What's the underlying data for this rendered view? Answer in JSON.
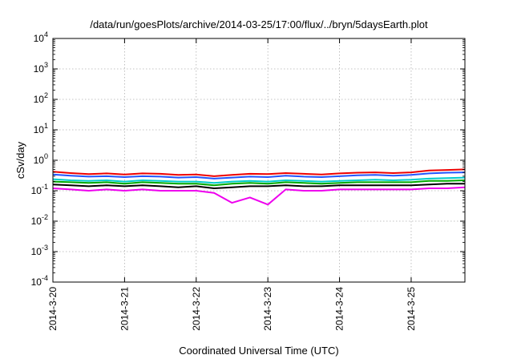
{
  "chart_data": {
    "type": "line",
    "title": "/data/run/goesPlots/archive/2014-03-25/17:00/flux/../bryn/5daysEarth.plot",
    "xlabel": "Coordinated Universal Time (UTC)",
    "ylabel": "cSv/day",
    "yscale": "log",
    "ylim": [
      0.0001,
      10000
    ],
    "xlim": [
      "2014-03-20 00:00",
      "2014-03-25 18:00"
    ],
    "grid": true,
    "x_ticks": [
      "2014-3-20",
      "2014-3-21",
      "2014-3-22",
      "2014-3-23",
      "2014-3-24",
      "2014-3-25"
    ],
    "y_ticks": [
      {
        "base": "10",
        "exp": "-4"
      },
      {
        "base": "10",
        "exp": "-3"
      },
      {
        "base": "10",
        "exp": "-2"
      },
      {
        "base": "10",
        "exp": "-1"
      },
      {
        "base": "10",
        "exp": "0"
      },
      {
        "base": "10",
        "exp": "1"
      },
      {
        "base": "10",
        "exp": "2"
      },
      {
        "base": "10",
        "exp": "3"
      },
      {
        "base": "10",
        "exp": "4"
      }
    ],
    "series": [
      {
        "color": "#ee0000",
        "values": [
          {
            "x": "2014-03-20 00:00",
            "y": 0.42
          },
          {
            "x": "2014-03-20 06:00",
            "y": 0.38
          },
          {
            "x": "2014-03-20 12:00",
            "y": 0.35
          },
          {
            "x": "2014-03-20 18:00",
            "y": 0.37
          },
          {
            "x": "2014-03-21 00:00",
            "y": 0.34
          },
          {
            "x": "2014-03-21 06:00",
            "y": 0.37
          },
          {
            "x": "2014-03-21 12:00",
            "y": 0.36
          },
          {
            "x": "2014-03-21 18:00",
            "y": 0.33
          },
          {
            "x": "2014-03-22 00:00",
            "y": 0.34
          },
          {
            "x": "2014-03-22 06:00",
            "y": 0.3
          },
          {
            "x": "2014-03-22 12:00",
            "y": 0.33
          },
          {
            "x": "2014-03-22 18:00",
            "y": 0.36
          },
          {
            "x": "2014-03-23 00:00",
            "y": 0.35
          },
          {
            "x": "2014-03-23 06:00",
            "y": 0.38
          },
          {
            "x": "2014-03-23 12:00",
            "y": 0.36
          },
          {
            "x": "2014-03-23 18:00",
            "y": 0.34
          },
          {
            "x": "2014-03-24 00:00",
            "y": 0.37
          },
          {
            "x": "2014-03-24 06:00",
            "y": 0.39
          },
          {
            "x": "2014-03-24 12:00",
            "y": 0.4
          },
          {
            "x": "2014-03-24 18:00",
            "y": 0.38
          },
          {
            "x": "2014-03-25 00:00",
            "y": 0.4
          },
          {
            "x": "2014-03-25 06:00",
            "y": 0.46
          },
          {
            "x": "2014-03-25 12:00",
            "y": 0.48
          },
          {
            "x": "2014-03-25 18:00",
            "y": 0.5
          }
        ]
      },
      {
        "color": "#2255ff",
        "values": [
          {
            "x": "2014-03-20 00:00",
            "y": 0.34
          },
          {
            "x": "2014-03-20 06:00",
            "y": 0.31
          },
          {
            "x": "2014-03-20 12:00",
            "y": 0.29
          },
          {
            "x": "2014-03-20 18:00",
            "y": 0.3
          },
          {
            "x": "2014-03-21 00:00",
            "y": 0.28
          },
          {
            "x": "2014-03-21 06:00",
            "y": 0.3
          },
          {
            "x": "2014-03-21 12:00",
            "y": 0.29
          },
          {
            "x": "2014-03-21 18:00",
            "y": 0.27
          },
          {
            "x": "2014-03-22 00:00",
            "y": 0.28
          },
          {
            "x": "2014-03-22 06:00",
            "y": 0.25
          },
          {
            "x": "2014-03-22 12:00",
            "y": 0.27
          },
          {
            "x": "2014-03-22 18:00",
            "y": 0.29
          },
          {
            "x": "2014-03-23 00:00",
            "y": 0.28
          },
          {
            "x": "2014-03-23 06:00",
            "y": 0.31
          },
          {
            "x": "2014-03-23 12:00",
            "y": 0.29
          },
          {
            "x": "2014-03-23 18:00",
            "y": 0.28
          },
          {
            "x": "2014-03-24 00:00",
            "y": 0.3
          },
          {
            "x": "2014-03-24 06:00",
            "y": 0.32
          },
          {
            "x": "2014-03-24 12:00",
            "y": 0.33
          },
          {
            "x": "2014-03-24 18:00",
            "y": 0.31
          },
          {
            "x": "2014-03-25 00:00",
            "y": 0.33
          },
          {
            "x": "2014-03-25 06:00",
            "y": 0.37
          },
          {
            "x": "2014-03-25 12:00",
            "y": 0.39
          },
          {
            "x": "2014-03-25 18:00",
            "y": 0.4
          }
        ]
      },
      {
        "color": "#00cccc",
        "values": [
          {
            "x": "2014-03-20 00:00",
            "y": 0.24
          },
          {
            "x": "2014-03-20 06:00",
            "y": 0.22
          },
          {
            "x": "2014-03-20 12:00",
            "y": 0.21
          },
          {
            "x": "2014-03-20 18:00",
            "y": 0.22
          },
          {
            "x": "2014-03-21 00:00",
            "y": 0.2
          },
          {
            "x": "2014-03-21 06:00",
            "y": 0.22
          },
          {
            "x": "2014-03-21 12:00",
            "y": 0.21
          },
          {
            "x": "2014-03-21 18:00",
            "y": 0.2
          },
          {
            "x": "2014-03-22 00:00",
            "y": 0.2
          },
          {
            "x": "2014-03-22 06:00",
            "y": 0.18
          },
          {
            "x": "2014-03-22 12:00",
            "y": 0.2
          },
          {
            "x": "2014-03-22 18:00",
            "y": 0.21
          },
          {
            "x": "2014-03-23 00:00",
            "y": 0.2
          },
          {
            "x": "2014-03-23 06:00",
            "y": 0.22
          },
          {
            "x": "2014-03-23 12:00",
            "y": 0.21
          },
          {
            "x": "2014-03-23 18:00",
            "y": 0.2
          },
          {
            "x": "2014-03-24 00:00",
            "y": 0.21
          },
          {
            "x": "2014-03-24 06:00",
            "y": 0.22
          },
          {
            "x": "2014-03-24 12:00",
            "y": 0.23
          },
          {
            "x": "2014-03-24 18:00",
            "y": 0.22
          },
          {
            "x": "2014-03-25 00:00",
            "y": 0.23
          },
          {
            "x": "2014-03-25 06:00",
            "y": 0.25
          },
          {
            "x": "2014-03-25 12:00",
            "y": 0.26
          },
          {
            "x": "2014-03-25 18:00",
            "y": 0.27
          }
        ]
      },
      {
        "color": "#00aa00",
        "values": [
          {
            "x": "2014-03-20 00:00",
            "y": 0.2
          },
          {
            "x": "2014-03-20 06:00",
            "y": 0.19
          },
          {
            "x": "2014-03-20 12:00",
            "y": 0.18
          },
          {
            "x": "2014-03-20 18:00",
            "y": 0.19
          },
          {
            "x": "2014-03-21 00:00",
            "y": 0.17
          },
          {
            "x": "2014-03-21 06:00",
            "y": 0.19
          },
          {
            "x": "2014-03-21 12:00",
            "y": 0.18
          },
          {
            "x": "2014-03-21 18:00",
            "y": 0.17
          },
          {
            "x": "2014-03-22 00:00",
            "y": 0.17
          },
          {
            "x": "2014-03-22 06:00",
            "y": 0.15
          },
          {
            "x": "2014-03-22 12:00",
            "y": 0.17
          },
          {
            "x": "2014-03-22 18:00",
            "y": 0.18
          },
          {
            "x": "2014-03-23 00:00",
            "y": 0.17
          },
          {
            "x": "2014-03-23 06:00",
            "y": 0.19
          },
          {
            "x": "2014-03-23 12:00",
            "y": 0.18
          },
          {
            "x": "2014-03-23 18:00",
            "y": 0.17
          },
          {
            "x": "2014-03-24 00:00",
            "y": 0.18
          },
          {
            "x": "2014-03-24 06:00",
            "y": 0.19
          },
          {
            "x": "2014-03-24 12:00",
            "y": 0.19
          },
          {
            "x": "2014-03-24 18:00",
            "y": 0.19
          },
          {
            "x": "2014-03-25 00:00",
            "y": 0.19
          },
          {
            "x": "2014-03-25 06:00",
            "y": 0.21
          },
          {
            "x": "2014-03-25 12:00",
            "y": 0.21
          },
          {
            "x": "2014-03-25 18:00",
            "y": 0.22
          }
        ]
      },
      {
        "color": "#000000",
        "values": [
          {
            "x": "2014-03-20 00:00",
            "y": 0.16
          },
          {
            "x": "2014-03-20 06:00",
            "y": 0.15
          },
          {
            "x": "2014-03-20 12:00",
            "y": 0.14
          },
          {
            "x": "2014-03-20 18:00",
            "y": 0.15
          },
          {
            "x": "2014-03-21 00:00",
            "y": 0.14
          },
          {
            "x": "2014-03-21 06:00",
            "y": 0.15
          },
          {
            "x": "2014-03-21 12:00",
            "y": 0.14
          },
          {
            "x": "2014-03-21 18:00",
            "y": 0.13
          },
          {
            "x": "2014-03-22 00:00",
            "y": 0.14
          },
          {
            "x": "2014-03-22 06:00",
            "y": 0.12
          },
          {
            "x": "2014-03-22 12:00",
            "y": 0.13
          },
          {
            "x": "2014-03-22 18:00",
            "y": 0.14
          },
          {
            "x": "2014-03-23 00:00",
            "y": 0.14
          },
          {
            "x": "2014-03-23 06:00",
            "y": 0.15
          },
          {
            "x": "2014-03-23 12:00",
            "y": 0.14
          },
          {
            "x": "2014-03-23 18:00",
            "y": 0.14
          },
          {
            "x": "2014-03-24 00:00",
            "y": 0.15
          },
          {
            "x": "2014-03-24 06:00",
            "y": 0.15
          },
          {
            "x": "2014-03-24 12:00",
            "y": 0.15
          },
          {
            "x": "2014-03-24 18:00",
            "y": 0.15
          },
          {
            "x": "2014-03-25 00:00",
            "y": 0.15
          },
          {
            "x": "2014-03-25 06:00",
            "y": 0.16
          },
          {
            "x": "2014-03-25 12:00",
            "y": 0.17
          },
          {
            "x": "2014-03-25 18:00",
            "y": 0.17
          }
        ]
      },
      {
        "color": "#ee00ee",
        "values": [
          {
            "x": "2014-03-20 00:00",
            "y": 0.12
          },
          {
            "x": "2014-03-20 06:00",
            "y": 0.11
          },
          {
            "x": "2014-03-20 12:00",
            "y": 0.1
          },
          {
            "x": "2014-03-20 18:00",
            "y": 0.11
          },
          {
            "x": "2014-03-21 00:00",
            "y": 0.1
          },
          {
            "x": "2014-03-21 06:00",
            "y": 0.11
          },
          {
            "x": "2014-03-21 12:00",
            "y": 0.1
          },
          {
            "x": "2014-03-21 18:00",
            "y": 0.1
          },
          {
            "x": "2014-03-22 00:00",
            "y": 0.1
          },
          {
            "x": "2014-03-22 06:00",
            "y": 0.085
          },
          {
            "x": "2014-03-22 12:00",
            "y": 0.04
          },
          {
            "x": "2014-03-22 18:00",
            "y": 0.06
          },
          {
            "x": "2014-03-23 00:00",
            "y": 0.035
          },
          {
            "x": "2014-03-23 06:00",
            "y": 0.11
          },
          {
            "x": "2014-03-23 12:00",
            "y": 0.1
          },
          {
            "x": "2014-03-23 18:00",
            "y": 0.1
          },
          {
            "x": "2014-03-24 00:00",
            "y": 0.11
          },
          {
            "x": "2014-03-24 06:00",
            "y": 0.11
          },
          {
            "x": "2014-03-24 12:00",
            "y": 0.11
          },
          {
            "x": "2014-03-24 18:00",
            "y": 0.11
          },
          {
            "x": "2014-03-25 00:00",
            "y": 0.11
          },
          {
            "x": "2014-03-25 06:00",
            "y": 0.12
          },
          {
            "x": "2014-03-25 12:00",
            "y": 0.12
          },
          {
            "x": "2014-03-25 18:00",
            "y": 0.13
          }
        ]
      }
    ]
  }
}
